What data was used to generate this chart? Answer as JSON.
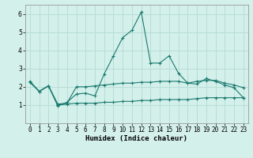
{
  "title": "",
  "xlabel": "Humidex (Indice chaleur)",
  "ylabel": "",
  "line_color": "#1a7a6e",
  "bg_color": "#d4f0eb",
  "grid_color": "#b8ddd8",
  "xlim": [
    -0.5,
    23.5
  ],
  "ylim": [
    0.0,
    6.5
  ],
  "yticks": [
    1,
    2,
    3,
    4,
    5,
    6
  ],
  "xticks": [
    0,
    1,
    2,
    3,
    4,
    5,
    6,
    7,
    8,
    9,
    10,
    11,
    12,
    13,
    14,
    15,
    16,
    17,
    18,
    19,
    20,
    21,
    22,
    23
  ],
  "series1_x": [
    0,
    1,
    2,
    3,
    4,
    5,
    6,
    7,
    8,
    9,
    10,
    11,
    12,
    13,
    14,
    15,
    16,
    17,
    18,
    19,
    20,
    21,
    22,
    23
  ],
  "series1_y": [
    2.3,
    1.75,
    2.05,
    0.95,
    1.15,
    1.6,
    1.65,
    1.5,
    2.7,
    3.7,
    4.7,
    5.1,
    6.1,
    3.3,
    3.3,
    3.7,
    2.75,
    2.2,
    2.15,
    2.45,
    2.3,
    2.1,
    1.95,
    1.4
  ],
  "series2_x": [
    0,
    1,
    2,
    3,
    4,
    5,
    6,
    7,
    8,
    9,
    10,
    11,
    12,
    13,
    14,
    15,
    16,
    17,
    18,
    19,
    20,
    21,
    22,
    23
  ],
  "series2_y": [
    2.25,
    1.75,
    2.05,
    1.05,
    1.1,
    2.0,
    2.0,
    2.05,
    2.1,
    2.15,
    2.2,
    2.2,
    2.25,
    2.25,
    2.3,
    2.3,
    2.3,
    2.2,
    2.3,
    2.35,
    2.35,
    2.2,
    2.1,
    1.95
  ],
  "series3_x": [
    0,
    1,
    2,
    3,
    4,
    5,
    6,
    7,
    8,
    9,
    10,
    11,
    12,
    13,
    14,
    15,
    16,
    17,
    18,
    19,
    20,
    21,
    22,
    23
  ],
  "series3_y": [
    2.25,
    1.75,
    2.05,
    1.0,
    1.05,
    1.1,
    1.1,
    1.1,
    1.15,
    1.15,
    1.2,
    1.2,
    1.25,
    1.25,
    1.3,
    1.3,
    1.3,
    1.3,
    1.35,
    1.4,
    1.4,
    1.4,
    1.4,
    1.4
  ],
  "tick_fontsize": 5.5,
  "xlabel_fontsize": 6.5,
  "marker_size": 3,
  "linewidth": 0.8
}
